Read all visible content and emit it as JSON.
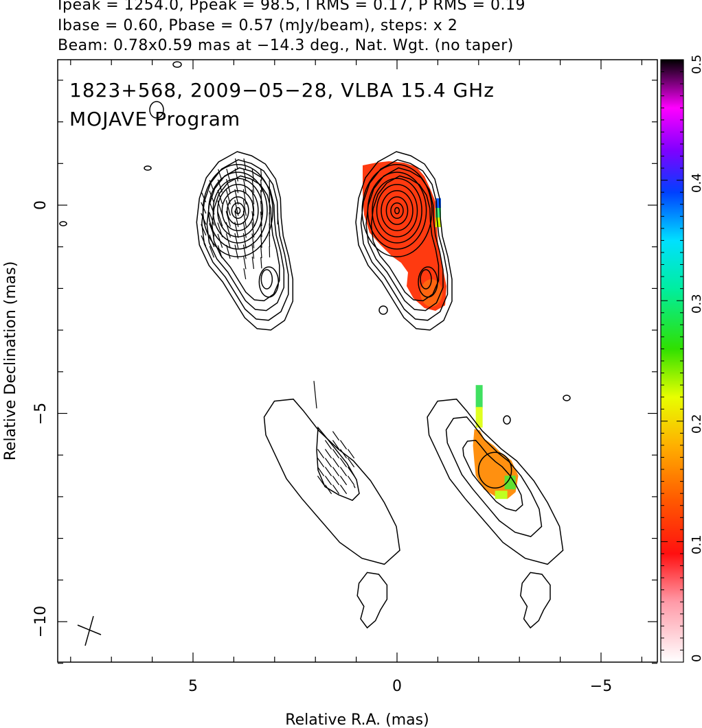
{
  "header": {
    "line1": "Ipeak = 1254.0, Ppeak = 98.5, I RMS = 0.17, P RMS = 0.19",
    "line2": "Ibase = 0.60, Pbase = 0.57 (mJy/beam), steps: x 2",
    "line3": "Beam: 0.78x0.59 mas at −14.3 deg., Nat. Wgt. (no taper)"
  },
  "chart_data": {
    "type": "contour-map",
    "title_line1": "1823+568, 2009−05−28, VLBA 15.4 GHz",
    "title_line2": "MOJAVE Program",
    "xlabel": "Relative R.A. (mas)",
    "ylabel": "Relative Declination (mas)",
    "xlim": [
      8,
      -6.3
    ],
    "ylim": [
      -11,
      3.5
    ],
    "x_ticks": [
      5,
      0,
      -5
    ],
    "x_tick_labels": [
      "5",
      "0",
      "−5"
    ],
    "y_ticks": [
      0,
      -5,
      -10
    ],
    "y_tick_labels": [
      "0",
      "−5",
      "−10"
    ],
    "colorbar": {
      "range": [
        0,
        0.5
      ],
      "ticks": [
        0,
        0.1,
        0.2,
        0.3,
        0.4,
        0.5
      ],
      "tick_labels": [
        "0",
        "0.1",
        "0.2",
        "0.3",
        "0.4",
        "0.5"
      ]
    },
    "panels": [
      {
        "name": "Stokes I with polarization vectors",
        "offset_ra": 3.9,
        "offset_dec": 0
      },
      {
        "name": "Stokes I with fractional polarization",
        "offset_ra": 0,
        "offset_dec": 0
      },
      {
        "name": "Jet feature polarization vectors",
        "offset_ra": 1.7,
        "offset_dec": -6.0
      },
      {
        "name": "Jet feature fractional polarization",
        "offset_ra": -2.3,
        "offset_dec": -6.0
      }
    ],
    "beam": {
      "major_mas": 0.78,
      "minor_mas": 0.59,
      "pa_deg": -14.3
    }
  }
}
